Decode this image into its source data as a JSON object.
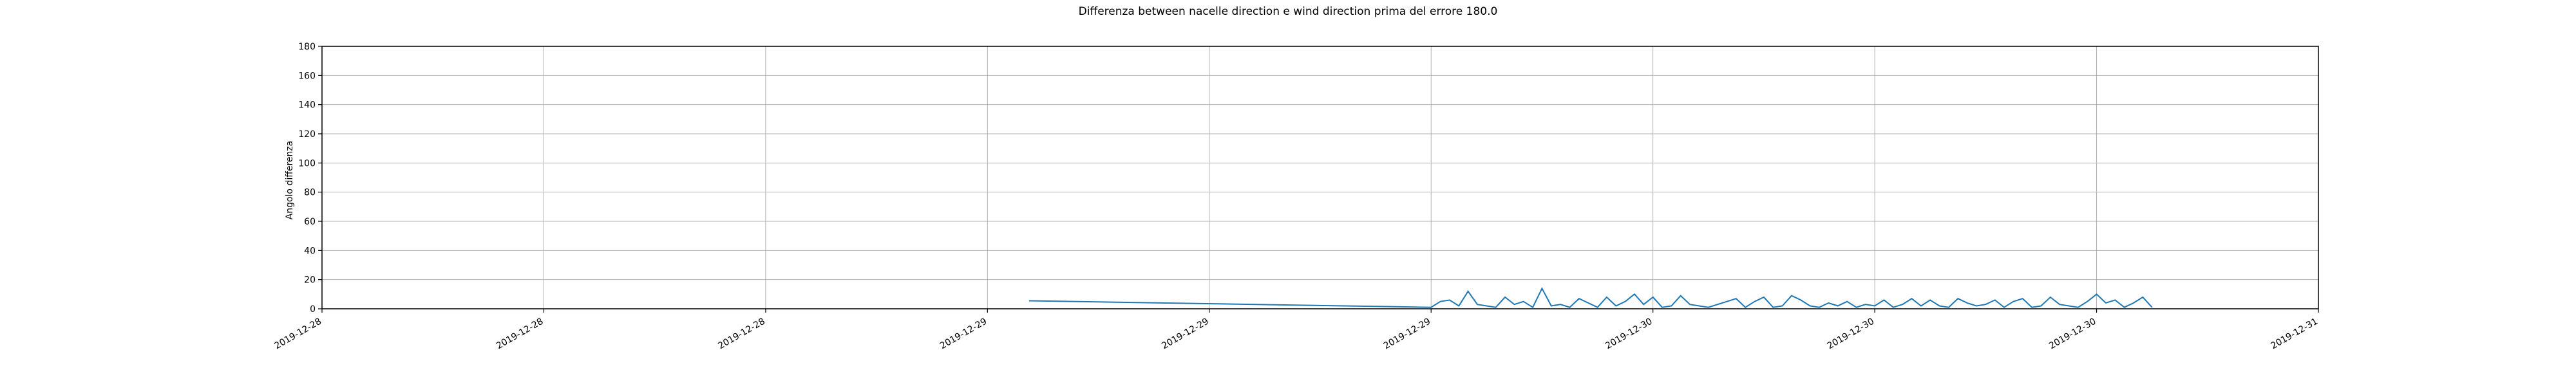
{
  "chart_data": {
    "type": "line",
    "title": "Differenza between nacelle direction e wind direction prima del errore 180.0",
    "xlabel": "",
    "ylabel": "Angolo differenza",
    "ylim": [
      0,
      180
    ],
    "yticks": [
      0,
      20,
      40,
      60,
      80,
      100,
      120,
      140,
      160,
      180
    ],
    "xlim": [
      "2019-12-28 00:00",
      "2019-12-31 00:00"
    ],
    "xticks": [
      {
        "t": "2019-12-28 00:00",
        "label": "2019-12-28"
      },
      {
        "t": "2019-12-28 08:00",
        "label": "2019-12-28"
      },
      {
        "t": "2019-12-28 16:00",
        "label": "2019-12-28"
      },
      {
        "t": "2019-12-29 00:00",
        "label": "2019-12-29"
      },
      {
        "t": "2019-12-29 08:00",
        "label": "2019-12-29"
      },
      {
        "t": "2019-12-29 16:00",
        "label": "2019-12-29"
      },
      {
        "t": "2019-12-30 00:00",
        "label": "2019-12-30"
      },
      {
        "t": "2019-12-30 08:00",
        "label": "2019-12-30"
      },
      {
        "t": "2019-12-30 16:00",
        "label": "2019-12-30"
      },
      {
        "t": "2019-12-31 00:00",
        "label": "2019-12-31"
      }
    ],
    "grid": true,
    "line_color": "#1f77b4",
    "series": [
      {
        "x": [
          "2019-12-29 01:30",
          "2019-12-29 16:00",
          "2019-12-29 16:20",
          "2019-12-29 16:40",
          "2019-12-29 17:00",
          "2019-12-29 17:20",
          "2019-12-29 17:40",
          "2019-12-29 18:00",
          "2019-12-29 18:20",
          "2019-12-29 18:40",
          "2019-12-29 19:00",
          "2019-12-29 19:20",
          "2019-12-29 19:40",
          "2019-12-29 20:00",
          "2019-12-29 20:20",
          "2019-12-29 20:40",
          "2019-12-29 21:00",
          "2019-12-29 21:20",
          "2019-12-29 21:40",
          "2019-12-29 22:00",
          "2019-12-29 22:20",
          "2019-12-29 22:40",
          "2019-12-29 23:00",
          "2019-12-29 23:20",
          "2019-12-29 23:40",
          "2019-12-30 00:00",
          "2019-12-30 00:20",
          "2019-12-30 00:40",
          "2019-12-30 01:00",
          "2019-12-30 01:20",
          "2019-12-30 01:40",
          "2019-12-30 02:00",
          "2019-12-30 02:20",
          "2019-12-30 02:40",
          "2019-12-30 03:00",
          "2019-12-30 03:20",
          "2019-12-30 03:40",
          "2019-12-30 04:00",
          "2019-12-30 04:20",
          "2019-12-30 04:40",
          "2019-12-30 05:00",
          "2019-12-30 05:20",
          "2019-12-30 05:40",
          "2019-12-30 06:00",
          "2019-12-30 06:20",
          "2019-12-30 06:40",
          "2019-12-30 07:00",
          "2019-12-30 07:20",
          "2019-12-30 07:40",
          "2019-12-30 08:00",
          "2019-12-30 08:20",
          "2019-12-30 08:40",
          "2019-12-30 09:00",
          "2019-12-30 09:20",
          "2019-12-30 09:40",
          "2019-12-30 10:00",
          "2019-12-30 10:20",
          "2019-12-30 10:40",
          "2019-12-30 11:00",
          "2019-12-30 11:20",
          "2019-12-30 11:40",
          "2019-12-30 12:00",
          "2019-12-30 12:20",
          "2019-12-30 12:40",
          "2019-12-30 13:00",
          "2019-12-30 13:20",
          "2019-12-30 13:40",
          "2019-12-30 14:00",
          "2019-12-30 14:20",
          "2019-12-30 14:40",
          "2019-12-30 15:00",
          "2019-12-30 15:20",
          "2019-12-30 15:40",
          "2019-12-30 16:00",
          "2019-12-30 16:20",
          "2019-12-30 16:40",
          "2019-12-30 17:00",
          "2019-12-30 17:20",
          "2019-12-30 17:40",
          "2019-12-30 18:00"
        ],
        "y": [
          5.5,
          1,
          5,
          6,
          2,
          12,
          3,
          2,
          1,
          8,
          3,
          5,
          1,
          14,
          2,
          3,
          1,
          7,
          4,
          1,
          8,
          2,
          5,
          10,
          3,
          8,
          1,
          2,
          9,
          3,
          2,
          1,
          3,
          5,
          7,
          1,
          5,
          8,
          1,
          2,
          9,
          6,
          2,
          1,
          4,
          2,
          5,
          1,
          3,
          2,
          6,
          1,
          3,
          7,
          2,
          6,
          2,
          1,
          7,
          4,
          2,
          3,
          6,
          1,
          5,
          7,
          1,
          2,
          8,
          3,
          2,
          1,
          5,
          10,
          4,
          6,
          1,
          4,
          8,
          1
        ]
      }
    ]
  }
}
